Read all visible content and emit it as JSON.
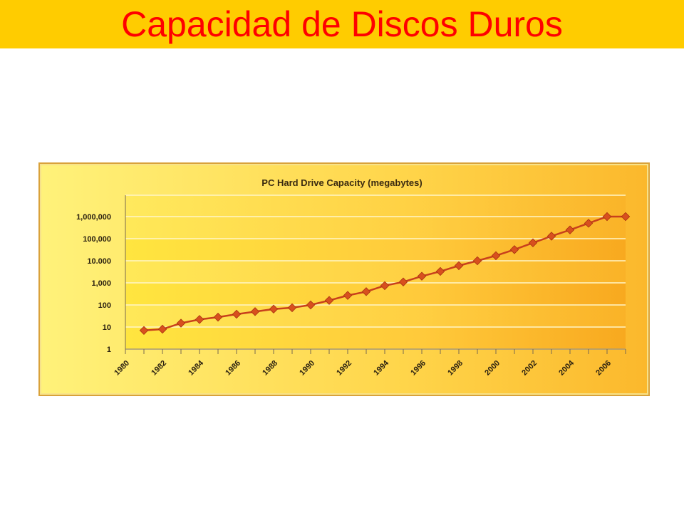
{
  "slide": {
    "title": "Capacidad de Discos Duros"
  },
  "colors": {
    "title_bar": "#ffcc00",
    "title_text": "#ff0000",
    "series_line": "#c8401c",
    "marker": "#d8501e"
  },
  "chart_data": {
    "type": "line",
    "title": "PC Hard Drive Capacity (megabytes)",
    "xlabel": "",
    "ylabel": "",
    "y_scale": "log",
    "ylim": [
      1,
      1000000
    ],
    "y_ticks": [
      1,
      10,
      100,
      1000,
      10000,
      100000,
      1000000
    ],
    "y_tick_labels": [
      "1",
      "10",
      "100",
      "1,000",
      "10.000",
      "100,000",
      "1,000,000"
    ],
    "x_range": [
      1980,
      2007
    ],
    "x_ticks": [
      1980,
      1982,
      1984,
      1986,
      1988,
      1990,
      1992,
      1994,
      1996,
      1998,
      2000,
      2002,
      2004,
      2006
    ],
    "x_tick_labels": [
      "1980",
      "1982",
      "1984",
      "1986",
      "1988",
      "1990",
      "1992",
      "1994",
      "1996",
      "1998",
      "2000",
      "2002",
      "2004",
      "2006"
    ],
    "grid": true,
    "legend": "none",
    "series": [
      {
        "x": [
          1981,
          1982,
          1983,
          1984,
          1985,
          1986,
          1987,
          1988,
          1989,
          1990,
          1991,
          1992,
          1993,
          1994,
          1995,
          1996,
          1997,
          1998,
          1999,
          2000,
          2001,
          2002,
          2003,
          2004,
          2005,
          2006,
          2007
        ],
        "values": [
          7,
          8,
          15,
          22,
          28,
          38,
          50,
          65,
          75,
          100,
          160,
          270,
          400,
          750,
          1100,
          2000,
          3300,
          6000,
          10000,
          17000,
          32000,
          65000,
          130000,
          250000,
          500000,
          1000000,
          1000000
        ]
      }
    ]
  }
}
